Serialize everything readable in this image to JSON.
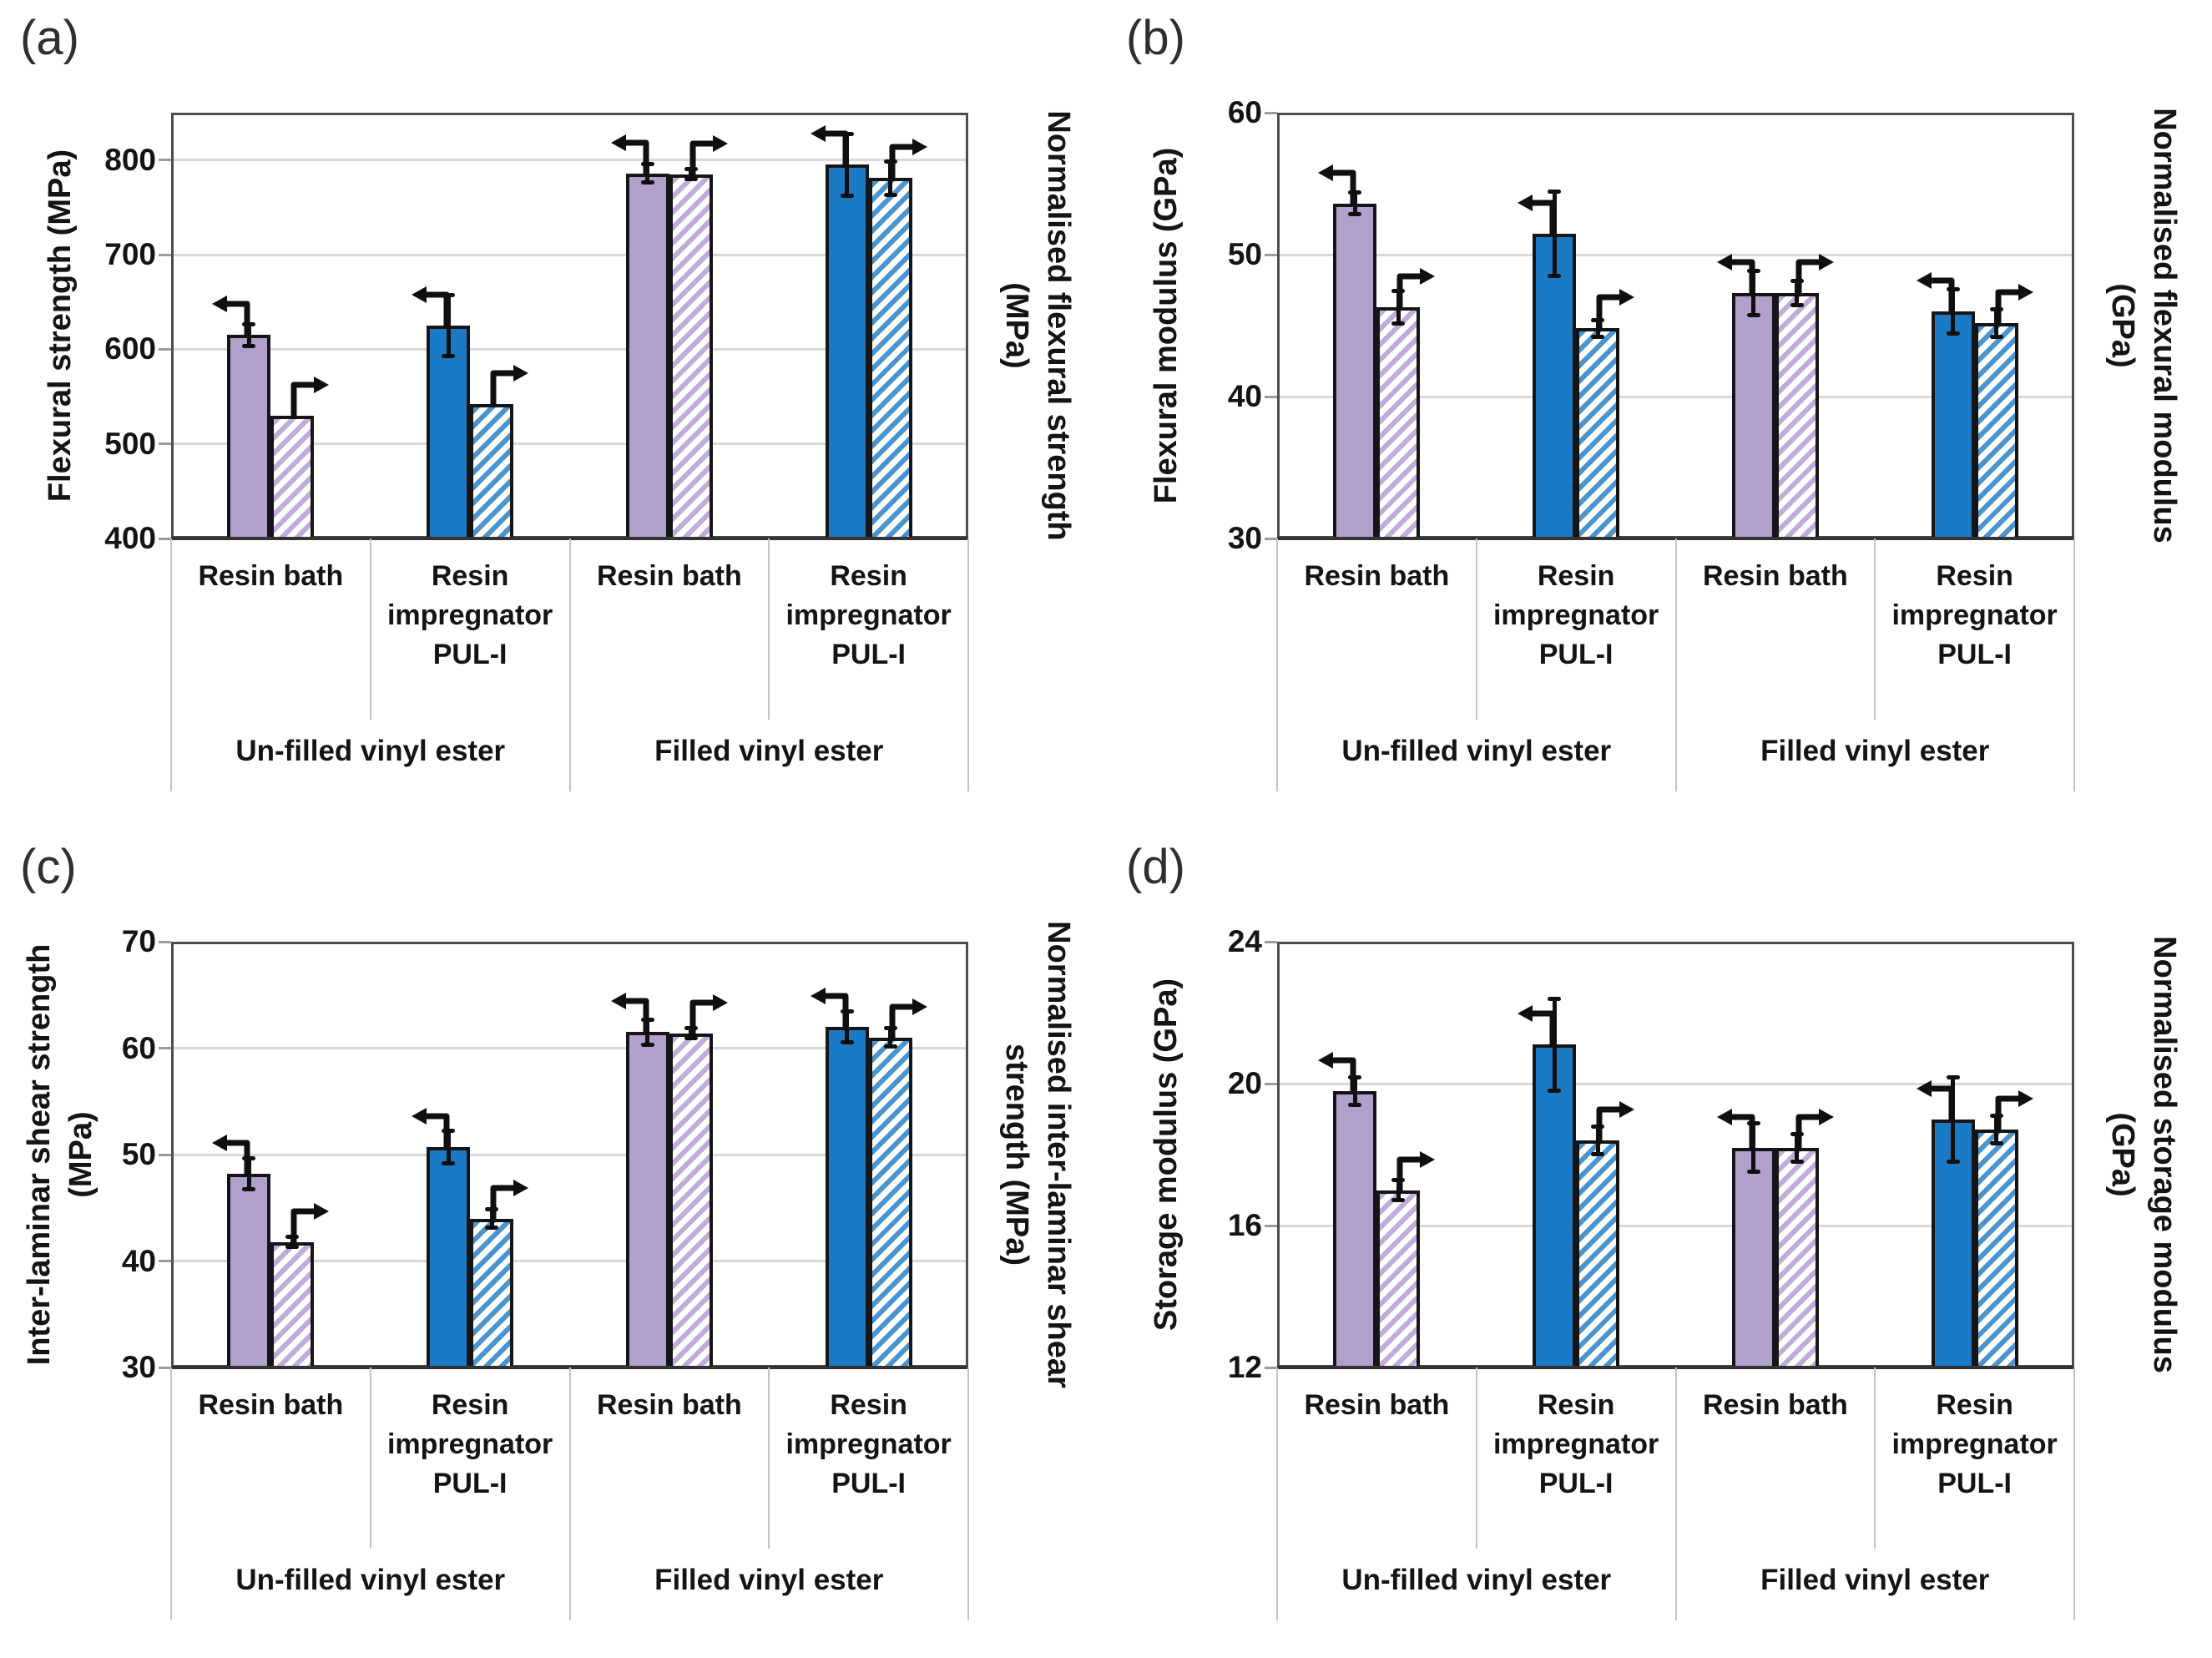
{
  "palette": {
    "solid_purple": "#b2a0cc",
    "hatch_purple_stripe": "#c0abdb",
    "solid_blue": "#1b7ac5",
    "hatch_blue_stripe": "#4a94d0",
    "hatch_background": "#ffffff",
    "bar_border": "#151515",
    "gridline": "#d8d8d8",
    "frame": "#4d4d4d",
    "axis_line": "#333333",
    "error_bar": "#0f0f0f",
    "text": "#141414",
    "background": "#ffffff"
  },
  "shared": {
    "category_lines": [
      "Resin bath",
      "Resin\nimpregnator\nPUL-I",
      "Resin bath",
      "Resin\nimpregnator\nPUL-I"
    ],
    "super_category_labels": [
      "Un-filled vinyl ester",
      "Filled vinyl ester"
    ],
    "group_color_keys": [
      "purple",
      "blue",
      "purple",
      "blue"
    ],
    "icons": {
      "solid_series_icon": "left-axis-arrow-icon",
      "hatched_series_icon": "right-axis-arrow-icon"
    }
  },
  "panels": [
    {
      "letter": "(a)",
      "left_title": "Flexural strength (MPa)",
      "right_title": "Normalised flexural strength\n(MPa)"
    },
    {
      "letter": "(b)",
      "left_title": "Flexural modulus (GPa)",
      "right_title": "Normalised flexural modulus\n(GPa)"
    },
    {
      "letter": "(c)",
      "left_title": "Inter-laminar shear strength\n(MPa)",
      "right_title": "Normalised inter-laminar shear\nstrength (MPa)"
    },
    {
      "letter": "(d)",
      "left_title": "Storage modulus (GPa)",
      "right_title": "Normalised storage modulus\n(GPa)"
    }
  ],
  "chart_data": [
    {
      "panel": "a",
      "type": "bar",
      "ylabel": "Flexural strength (MPa)",
      "ylabel_right": "Normalised flexural strength (MPa)",
      "ymin": 400,
      "ymax": 850,
      "yticks": [
        400,
        500,
        600,
        700,
        800
      ],
      "categories": [
        "Resin bath",
        "Resin impregnator PUL-I",
        "Resin bath",
        "Resin impregnator PUL-I"
      ],
      "super_categories": [
        "Un-filled vinyl ester",
        "Filled vinyl ester"
      ],
      "series": [
        {
          "name": "solid (left axis)",
          "style": "solid",
          "values": [
            615,
            625,
            786,
            795
          ],
          "errors": [
            12,
            33,
            10,
            33
          ]
        },
        {
          "name": "hatched (right axis, normalised)",
          "style": "hatched",
          "values": [
            530,
            542,
            785,
            781
          ],
          "errors": [
            0,
            0,
            6,
            18
          ]
        }
      ]
    },
    {
      "panel": "b",
      "type": "bar",
      "ylabel": "Flexural modulus (GPa)",
      "ylabel_right": "Normalised flexural modulus (GPa)",
      "ymin": 30,
      "ymax": 60,
      "yticks": [
        30,
        40,
        50,
        60
      ],
      "categories": [
        "Resin bath",
        "Resin impregnator PUL-I",
        "Resin bath",
        "Resin impregnator PUL-I"
      ],
      "super_categories": [
        "Un-filled vinyl ester",
        "Filled vinyl ester"
      ],
      "series": [
        {
          "name": "solid (left axis)",
          "style": "solid",
          "values": [
            53.6,
            51.5,
            47.3,
            46.0
          ],
          "errors": [
            0.8,
            3.0,
            1.6,
            1.6
          ]
        },
        {
          "name": "hatched (right axis, normalised)",
          "style": "hatched",
          "values": [
            46.3,
            44.8,
            47.3,
            45.2
          ],
          "errors": [
            1.2,
            0.6,
            0.9,
            1.0
          ]
        }
      ]
    },
    {
      "panel": "c",
      "type": "bar",
      "ylabel": "Inter-laminar shear strength (MPa)",
      "ylabel_right": "Normalised inter-laminar shear strength (MPa)",
      "ymin": 30,
      "ymax": 70,
      "yticks": [
        30,
        40,
        50,
        60,
        70
      ],
      "categories": [
        "Resin bath",
        "Resin impregnator PUL-I",
        "Resin bath",
        "Resin impregnator PUL-I"
      ],
      "super_categories": [
        "Un-filled vinyl ester",
        "Filled vinyl ester"
      ],
      "series": [
        {
          "name": "solid (left axis)",
          "style": "solid",
          "values": [
            48.2,
            50.7,
            61.5,
            62.0
          ],
          "errors": [
            1.5,
            1.6,
            1.2,
            1.5
          ]
        },
        {
          "name": "hatched (right axis, normalised)",
          "style": "hatched",
          "values": [
            41.8,
            44.0,
            61.4,
            61.0
          ],
          "errors": [
            0.5,
            0.9,
            0.5,
            0.9
          ]
        }
      ]
    },
    {
      "panel": "d",
      "type": "bar",
      "ylabel": "Storage modulus (GPa)",
      "ylabel_right": "Normalised storage modulus (GPa)",
      "ymin": 12,
      "ymax": 24,
      "yticks": [
        12,
        16,
        20,
        24
      ],
      "categories": [
        "Resin bath",
        "Resin impregnator PUL-I",
        "Resin bath",
        "Resin impregnator PUL-I"
      ],
      "super_categories": [
        "Un-filled vinyl ester",
        "Filled vinyl ester"
      ],
      "series": [
        {
          "name": "solid (left axis)",
          "style": "solid",
          "values": [
            19.8,
            21.1,
            18.2,
            19.0
          ],
          "errors": [
            0.4,
            1.3,
            0.7,
            1.2
          ]
        },
        {
          "name": "hatched (right axis, normalised)",
          "style": "hatched",
          "values": [
            17.0,
            18.4,
            18.2,
            18.7
          ],
          "errors": [
            0.3,
            0.4,
            0.4,
            0.4
          ]
        }
      ]
    }
  ]
}
